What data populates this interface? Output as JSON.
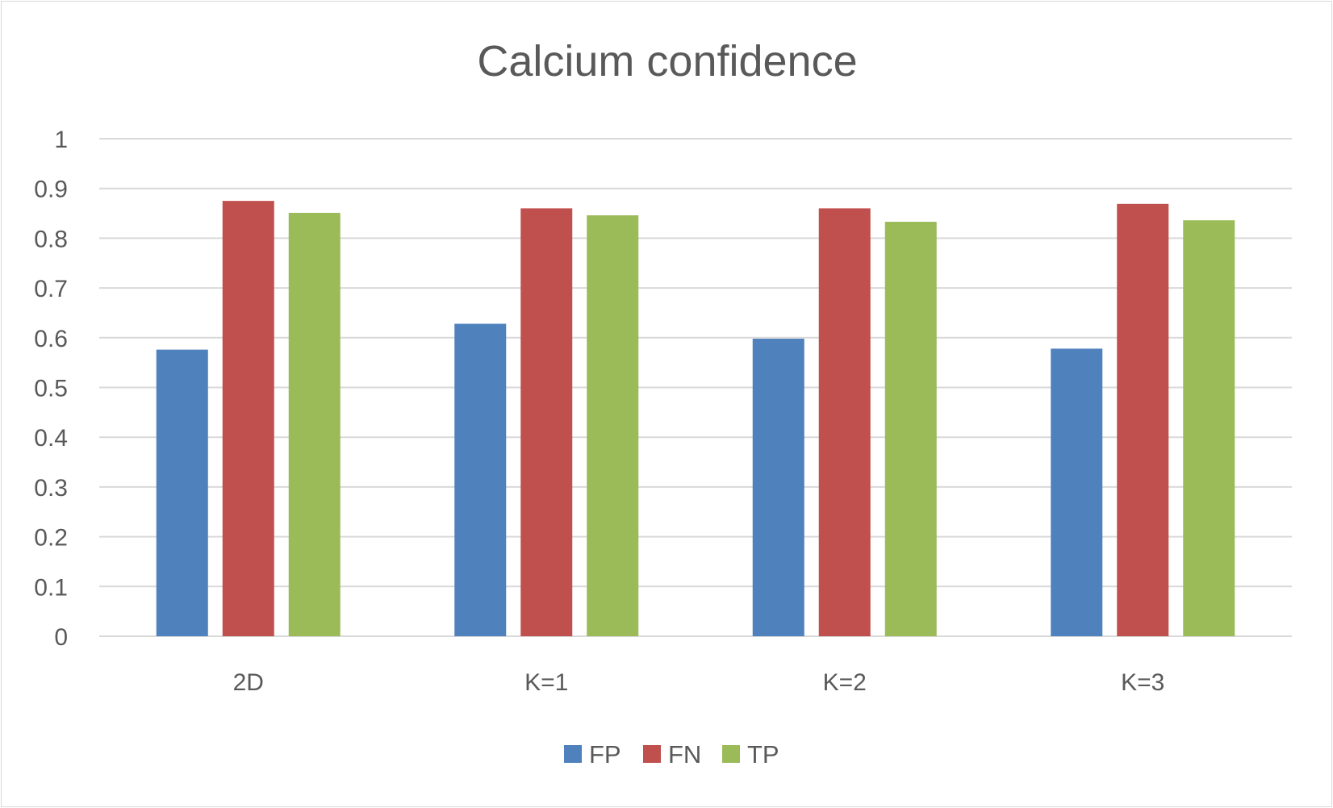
{
  "chart_data": {
    "type": "bar",
    "title": "Calcium confidence",
    "xlabel": "",
    "ylabel": "",
    "categories": [
      "2D",
      "K=1",
      "K=2",
      "K=3"
    ],
    "ylim": [
      0,
      1
    ],
    "yticks": [
      0,
      0.1,
      0.2,
      0.3,
      0.4,
      0.5,
      0.6,
      0.7,
      0.8,
      0.9,
      1
    ],
    "ytick_labels": [
      "0",
      "0.1",
      "0.2",
      "0.3",
      "0.4",
      "0.5",
      "0.6",
      "0.7",
      "0.8",
      "0.9",
      "1"
    ],
    "grid": true,
    "legend_position": "bottom",
    "series": [
      {
        "name": "FP",
        "color": "#4f81bd",
        "values": [
          0.576,
          0.628,
          0.598,
          0.578
        ]
      },
      {
        "name": "FN",
        "color": "#c0504d",
        "values": [
          0.875,
          0.86,
          0.86,
          0.869
        ]
      },
      {
        "name": "TP",
        "color": "#9bbb59",
        "values": [
          0.851,
          0.846,
          0.833,
          0.836
        ]
      }
    ]
  }
}
